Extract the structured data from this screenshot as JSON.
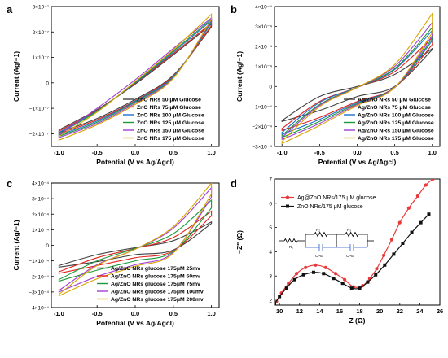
{
  "chart_data": [
    {
      "panel": "a",
      "type": "line",
      "xlabel": "Potential (V vs Ag/Agcl)",
      "ylabel": "Current (Ag/−1)",
      "xlim": [
        -1.1,
        1.1
      ],
      "ylim": [
        -2.5e-07,
        3e-07
      ],
      "xticks": [
        -1.0,
        -0.5,
        0.0,
        0.5,
        1.0
      ],
      "xtick_labels": [
        "-1.0",
        "-0.5",
        "0.0",
        "0.5",
        "1.0"
      ],
      "yticks": [
        -2e-07,
        -1e-07,
        0,
        1e-07,
        2e-07,
        3e-07
      ],
      "ytick_labels": [
        "−2×10⁻⁷",
        "−1×10⁻⁷",
        "0",
        "1×10⁻⁷",
        "2×10⁻⁷",
        "3×10⁻⁷"
      ],
      "legend_position": "lower-right",
      "series": [
        {
          "name": "ZnO NRs 50 μM Glucose",
          "color": "#404040",
          "low": 2.2e-07,
          "up": 2.35e-07,
          "xs": [
            -1.0,
            -0.5,
            0.0,
            0.5,
            1.0
          ],
          "upper": [
            -1.85e-07,
            -1.05e-07,
            -5e-09,
            1.1e-07,
            2.3e-07
          ],
          "lower": [
            -1.95e-07,
            -1.4e-07,
            -6.5e-08,
            3e-08,
            2.2e-07
          ]
        },
        {
          "name": "ZnO NRs 75 μM Glucose",
          "color": "#e0241c",
          "xs": [
            -1.0,
            -0.5,
            0.0,
            0.5,
            1.0
          ],
          "upper": [
            -1.9e-07,
            -1.08e-07,
            -2e-09,
            1.15e-07,
            2.35e-07
          ],
          "lower": [
            -2e-07,
            -1.45e-07,
            -7e-08,
            2.8e-08,
            2.25e-07
          ]
        },
        {
          "name": "ZnO NRs 100 μM Glucose",
          "color": "#1f6fd0",
          "xs": [
            -1.0,
            -0.5,
            0.0,
            0.5,
            1.0
          ],
          "upper": [
            -1.95e-07,
            -1.1e-07,
            0.0,
            1.2e-07,
            2.45e-07
          ],
          "lower": [
            -2.05e-07,
            -1.5e-07,
            -7.2e-08,
            2.5e-08,
            2.35e-07
          ]
        },
        {
          "name": "ZnO NRs 125 μM Glucose",
          "color": "#1a9a3a",
          "xs": [
            -1.0,
            -0.5,
            0.0,
            0.5,
            1.0
          ],
          "upper": [
            -2e-07,
            -1.12e-07,
            2e-09,
            1.25e-07,
            2.5e-07
          ],
          "lower": [
            -2.1e-07,
            -1.55e-07,
            -7.5e-08,
            2.2e-08,
            2.4e-07
          ]
        },
        {
          "name": "ZnO NRs 150 μM Glucose",
          "color": "#a23fd3",
          "xs": [
            -1.0,
            -0.5,
            0.0,
            0.5,
            1.0
          ],
          "upper": [
            -2.05e-07,
            -1e-07,
            1.2e-08,
            1.35e-07,
            2.55e-07
          ],
          "lower": [
            -2.15e-07,
            -1.6e-07,
            -8e-08,
            2e-08,
            2.45e-07
          ]
        },
        {
          "name": "ZnO NRs 175 μM Glucose",
          "color": "#d9a400",
          "xs": [
            -1.0,
            -0.5,
            0.0,
            0.5,
            1.0
          ],
          "upper": [
            -2.1e-07,
            -1.15e-07,
            5e-09,
            1.3e-07,
            2.7e-07
          ],
          "lower": [
            -2.25e-07,
            -1.65e-07,
            -8.5e-08,
            1.8e-08,
            2.5e-07
          ]
        }
      ]
    },
    {
      "panel": "b",
      "type": "line",
      "xlabel": "Potential (V vs Ag/Agcl)",
      "ylabel": "Current (Ag/−1)",
      "xlim": [
        -1.1,
        1.1
      ],
      "ylim": [
        -0.0003,
        0.0004
      ],
      "xticks": [
        -1.0,
        -0.5,
        0.0,
        0.5,
        1.0
      ],
      "xtick_labels": [
        "-1.0",
        "-0.5",
        "0.0",
        "0.5",
        "1.0"
      ],
      "yticks": [
        -0.0003,
        -0.0002,
        -0.0001,
        0,
        0.0001,
        0.0002,
        0.0003,
        0.0004
      ],
      "ytick_labels": [
        "−3×10⁻⁴",
        "−2×10⁻⁴",
        "−1×10⁻⁴",
        "0",
        "1×10⁻⁴",
        "2×10⁻⁴",
        "3×10⁻⁴",
        "4×10⁻⁴"
      ],
      "legend_position": "lower-right",
      "series": [
        {
          "name": "Ag/ZnO NRs 50 μM Glucose",
          "color": "#404040",
          "xs": [
            -1.0,
            -0.5,
            0.0,
            0.5,
            1.0
          ],
          "upper": [
            -0.00017,
            -5e-05,
            0.0,
            6e-05,
            0.00019
          ],
          "lower": [
            -0.000175,
            -0.00012,
            -5e-05,
            0.0,
            0.000185
          ]
        },
        {
          "name": "Ag/ZnO NRs 75 μM Glucose",
          "color": "#e0241c",
          "xs": [
            -1.0,
            -0.5,
            0.0,
            0.5,
            1.0
          ],
          "upper": [
            -0.00021,
            -7.5e-05,
            -5e-06,
            7.5e-05,
            0.000245
          ],
          "lower": [
            -0.00022,
            -0.000155,
            -7.5e-05,
            -5e-06,
            0.00021
          ]
        },
        {
          "name": "Ag/ZnO NRs 100 μM Glucose",
          "color": "#1f6fd0",
          "xs": [
            -1.0,
            -0.5,
            0.0,
            0.5,
            1.0
          ],
          "upper": [
            -0.00023,
            -8e-05,
            -5e-06,
            8.5e-05,
            0.00028
          ],
          "lower": [
            -0.00024,
            -0.000165,
            -8e-05,
            -5e-06,
            0.00023
          ]
        },
        {
          "name": "Ag/ZnO NRs 125 μM Glucose",
          "color": "#1a9a3a",
          "xs": [
            -1.0,
            -0.5,
            0.0,
            0.5,
            1.0
          ],
          "upper": [
            -0.000245,
            -9e-05,
            -5e-06,
            9e-05,
            0.000295
          ],
          "lower": [
            -0.000255,
            -0.000175,
            -8.5e-05,
            -5e-06,
            0.00024
          ]
        },
        {
          "name": "Ag/ZnO NRs 150 μM Glucose",
          "color": "#a23fd3",
          "xs": [
            -1.0,
            -0.5,
            0.0,
            0.5,
            1.0
          ],
          "upper": [
            -0.000255,
            -9.5e-05,
            -5e-06,
            0.0001,
            0.00032
          ],
          "lower": [
            -0.000265,
            -0.000185,
            -9e-05,
            -5e-06,
            0.000255
          ]
        },
        {
          "name": "Ag/ZnO NRs 175 μM Glucose",
          "color": "#d9a400",
          "xs": [
            -1.0,
            -0.5,
            0.0,
            0.5,
            1.0
          ],
          "upper": [
            -0.000275,
            -0.0001,
            -5e-06,
            0.00011,
            0.000365
          ],
          "lower": [
            -0.000285,
            -0.000195,
            -9.5e-05,
            -5e-06,
            0.00027
          ]
        }
      ]
    },
    {
      "panel": "c",
      "type": "line",
      "xlabel": "Potential (V vs Ag/Agcl)",
      "ylabel": "Current (Ag/−1)",
      "xlim": [
        -1.1,
        1.1
      ],
      "ylim": [
        -0.0004,
        0.0004
      ],
      "xticks": [
        -1.0,
        -0.5,
        0.0,
        0.5,
        1.0
      ],
      "xtick_labels": [
        "-1.0",
        "-0.5",
        "0.0",
        "0.5",
        "1.0"
      ],
      "yticks": [
        -0.0004,
        -0.0003,
        -0.0002,
        -0.0001,
        0,
        0.0001,
        0.0002,
        0.0003,
        0.0004
      ],
      "ytick_labels": [
        "−4×10⁻⁴",
        "−3×10⁻⁴",
        "−2×10⁻⁴",
        "−1×10⁻⁴",
        "0",
        "1×10⁻⁴",
        "2×10⁻⁴",
        "3×10⁻⁴",
        "4×10⁻⁴"
      ],
      "legend_position": "lower-right",
      "series": [
        {
          "name": "Ag/ZnO NRs glucose 175μM 25mv",
          "color": "#404040",
          "xs": [
            -1.0,
            -0.5,
            0.0,
            0.5,
            1.0
          ],
          "upper": [
            -0.00013,
            -6e-05,
            -1.5e-05,
            3e-05,
            0.00015
          ],
          "lower": [
            -0.00014,
            -0.000105,
            -6e-05,
            -3e-05,
            0.00014
          ]
        },
        {
          "name": "Ag/ZnO NRs glucose 175μM 50mv",
          "color": "#e0241c",
          "xs": [
            -1.0,
            -0.5,
            0.0,
            0.5,
            1.0
          ],
          "upper": [
            -0.00017,
            -8e-05,
            -2e-05,
            5e-05,
            0.00022
          ],
          "lower": [
            -0.00018,
            -0.00013,
            -8e-05,
            -3.5e-05,
            0.00019
          ]
        },
        {
          "name": "Ag/ZnO NRs glucose 175μM 75mv",
          "color": "#1a9a3a",
          "xs": [
            -1.0,
            -0.5,
            0.0,
            0.5,
            1.0
          ],
          "upper": [
            -0.00022,
            -0.0001,
            -2e-05,
            7.5e-05,
            0.00029
          ],
          "lower": [
            -0.00023,
            -0.00016,
            -0.0001,
            -4e-05,
            0.00024
          ]
        },
        {
          "name": "Ag/ZnO NRs glucose 175μM 100mv",
          "color": "#a23fd3",
          "xs": [
            -1.0,
            -0.5,
            0.0,
            0.5,
            1.0
          ],
          "upper": [
            -0.00029,
            -0.000125,
            -2.5e-05,
            0.00011,
            0.00037
          ],
          "lower": [
            -0.0003,
            -0.0002,
            -0.000125,
            -4.5e-05,
            0.00031
          ]
        },
        {
          "name": "Ag/ZnO NRs glucose 175μM 200mv",
          "color": "#d9a400",
          "xs": [
            -1.0,
            -0.5,
            0.0,
            0.5,
            1.0
          ],
          "upper": [
            -0.000315,
            -0.00013,
            -2.5e-05,
            0.00012,
            0.0004
          ],
          "lower": [
            -0.000325,
            -0.000215,
            -0.000135,
            -5e-05,
            0.00033
          ]
        }
      ]
    },
    {
      "panel": "d",
      "type": "line",
      "xlabel": "Z (Ω)",
      "ylabel": "−Z\" (Ω)",
      "xlim": [
        9.5,
        26
      ],
      "ylim": [
        1.8,
        7.0
      ],
      "xticks": [
        10,
        12,
        14,
        16,
        18,
        20,
        22,
        24,
        26
      ],
      "xtick_labels": [
        "10",
        "12",
        "14",
        "16",
        "18",
        "20",
        "22",
        "24",
        "26"
      ],
      "yticks": [
        2,
        3,
        4,
        5,
        6,
        7
      ],
      "ytick_labels": [
        "2",
        "3",
        "4",
        "5",
        "6",
        "7"
      ],
      "legend_position": "top-left",
      "circuit_labels": [
        "R₁",
        "R₂",
        "R₃",
        "CPE",
        "CPE"
      ],
      "series": [
        {
          "name": "Ag@ZnO NRs/175 μM glucose",
          "color": "#e8393a",
          "marker": "circle",
          "x": [
            9.7,
            10.2,
            10.9,
            11.7,
            12.6,
            13.6,
            14.6,
            15.6,
            16.5,
            17.4,
            18.3,
            19.0,
            19.7,
            20.4,
            21.2,
            22.0,
            22.9,
            23.8,
            24.6,
            25.3
          ],
          "y": [
            1.95,
            2.3,
            2.7,
            3.1,
            3.35,
            3.45,
            3.35,
            3.1,
            2.85,
            2.55,
            2.6,
            2.9,
            3.3,
            3.85,
            4.5,
            5.2,
            5.8,
            6.3,
            6.75,
            7.0
          ]
        },
        {
          "name": "ZnO NRs/175 μM glucose",
          "color": "#111111",
          "marker": "square",
          "x": [
            9.5,
            10.0,
            10.7,
            11.5,
            12.4,
            13.4,
            14.4,
            15.4,
            16.3,
            17.2,
            18.0,
            18.8,
            19.6,
            20.5,
            21.4,
            22.3,
            23.2,
            24.1,
            24.9
          ],
          "y": [
            1.85,
            2.15,
            2.5,
            2.85,
            3.05,
            3.15,
            3.1,
            2.9,
            2.7,
            2.5,
            2.5,
            2.75,
            3.05,
            3.45,
            3.9,
            4.35,
            4.8,
            5.2,
            5.55
          ]
        }
      ]
    }
  ]
}
